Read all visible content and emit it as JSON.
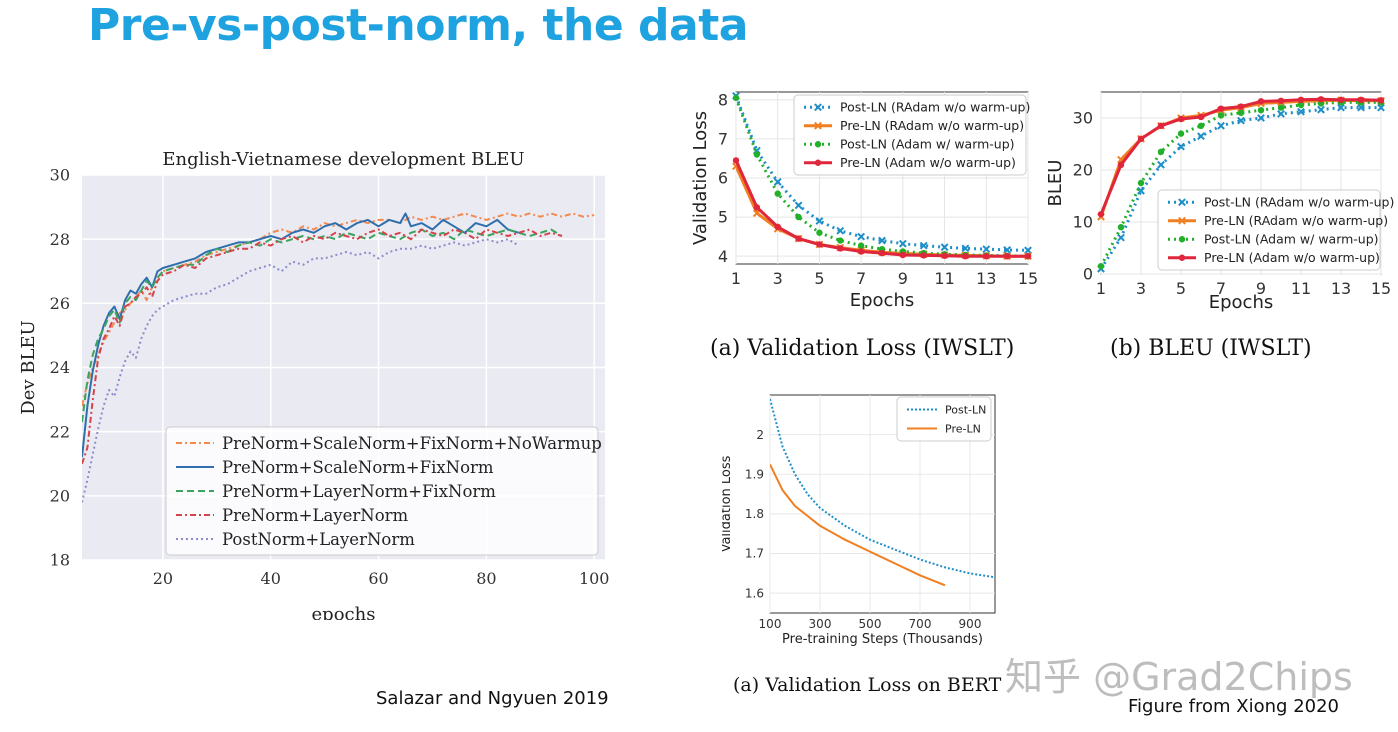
{
  "slide": {
    "title": "Pre-vs-post-norm, the data",
    "credit_left": "Salazar and Ngyuen 2019",
    "credit_right": "Figure from Xiong 2020",
    "watermark": "知乎 @Grad2Chips"
  },
  "colors": {
    "title": "#1fa3e0",
    "post_ln": "#1f8fc8",
    "pre_ln": "#f07f22",
    "post_adam": "#22b02a",
    "pre_adam": "#e0263c",
    "ax_bg": "#eaeaf2"
  },
  "chart_data": [
    {
      "id": "bleu_envi",
      "type": "line",
      "title": "English-Vietnamese development BLEU",
      "xlabel": "epochs",
      "ylabel": "Dev BLEU",
      "xlim": [
        5,
        102
      ],
      "ylim": [
        18,
        30
      ],
      "xticks": [
        20,
        40,
        60,
        80,
        100
      ],
      "yticks": [
        18,
        20,
        22,
        24,
        26,
        28,
        30
      ],
      "legend_position": "bottom-right",
      "series": [
        {
          "name": "PreNorm+ScaleNorm+FixNorm+NoWarmup",
          "color": "#f4894f",
          "dash": "6,3,2,3",
          "x": [
            5,
            6,
            7,
            8,
            9,
            10,
            11,
            12,
            13,
            14,
            15,
            16,
            17,
            18,
            19,
            20,
            22,
            24,
            26,
            28,
            30,
            32,
            34,
            36,
            38,
            40,
            42,
            44,
            46,
            48,
            50,
            52,
            54,
            56,
            58,
            60,
            62,
            64,
            66,
            68,
            70,
            72,
            74,
            76,
            78,
            80,
            82,
            84,
            86,
            88,
            90,
            92,
            94,
            96,
            98,
            100
          ],
          "y": [
            22.8,
            23.5,
            24.0,
            24.4,
            24.8,
            25.1,
            25.4,
            25.7,
            25.8,
            26.0,
            26.2,
            26.4,
            26.1,
            26.5,
            26.8,
            27.0,
            27.1,
            27.2,
            27.3,
            27.5,
            27.6,
            27.7,
            27.8,
            27.9,
            28.0,
            28.2,
            28.3,
            28.2,
            28.4,
            28.3,
            28.5,
            28.4,
            28.5,
            28.6,
            28.5,
            28.6,
            28.6,
            28.5,
            28.7,
            28.6,
            28.7,
            28.6,
            28.7,
            28.8,
            28.7,
            28.6,
            28.7,
            28.8,
            28.7,
            28.8,
            28.7,
            28.8,
            28.7,
            28.8,
            28.7,
            28.75
          ]
        },
        {
          "name": "PreNorm+ScaleNorm+FixNorm",
          "color": "#2f6fad",
          "dash": "",
          "x": [
            5,
            6,
            7,
            8,
            9,
            10,
            11,
            12,
            13,
            14,
            15,
            16,
            17,
            18,
            19,
            20,
            22,
            24,
            26,
            28,
            30,
            32,
            34,
            36,
            38,
            40,
            42,
            44,
            46,
            48,
            50,
            52,
            54,
            56,
            58,
            60,
            62,
            64,
            65,
            66,
            68,
            70,
            72,
            74,
            76,
            78,
            80,
            82,
            84,
            86
          ],
          "y": [
            21.2,
            22.8,
            23.9,
            24.7,
            25.3,
            25.7,
            25.9,
            25.5,
            26.1,
            26.4,
            26.3,
            26.6,
            26.8,
            26.5,
            27.0,
            27.1,
            27.2,
            27.3,
            27.4,
            27.6,
            27.7,
            27.8,
            27.9,
            27.9,
            28.0,
            28.1,
            28.0,
            28.2,
            28.3,
            28.2,
            28.4,
            28.5,
            28.3,
            28.5,
            28.6,
            28.4,
            28.6,
            28.5,
            28.8,
            28.4,
            28.5,
            28.3,
            28.6,
            28.4,
            28.2,
            28.5,
            28.4,
            28.6,
            28.3,
            28.2
          ]
        },
        {
          "name": "PreNorm+LayerNorm+FixNorm",
          "color": "#3aa35e",
          "dash": "7,4",
          "x": [
            5,
            6,
            7,
            8,
            9,
            10,
            11,
            12,
            13,
            14,
            15,
            16,
            17,
            18,
            19,
            20,
            22,
            24,
            26,
            28,
            30,
            32,
            34,
            36,
            38,
            40,
            42,
            44,
            46,
            48,
            50,
            52,
            54,
            56,
            58,
            60,
            62,
            64,
            66,
            68,
            70,
            72,
            74,
            76,
            78,
            80,
            82,
            84,
            86,
            88,
            90,
            92,
            94
          ],
          "y": [
            22.3,
            23.6,
            24.4,
            24.9,
            25.2,
            25.6,
            25.8,
            25.4,
            26.0,
            26.2,
            26.1,
            26.4,
            26.7,
            26.5,
            26.8,
            27.0,
            27.1,
            27.2,
            27.2,
            27.5,
            27.7,
            27.6,
            27.8,
            27.9,
            27.8,
            28.0,
            27.9,
            28.0,
            28.1,
            28.0,
            28.1,
            28.0,
            28.2,
            28.1,
            28.0,
            28.2,
            28.1,
            28.0,
            28.2,
            28.3,
            28.1,
            28.2,
            28.0,
            28.3,
            28.2,
            28.1,
            28.2,
            28.3,
            28.2,
            28.1,
            28.2,
            28.3,
            28.1
          ]
        },
        {
          "name": "PreNorm+LayerNorm",
          "color": "#d6434a",
          "dash": "6,3,2,3",
          "x": [
            5,
            6,
            7,
            8,
            9,
            10,
            11,
            12,
            13,
            14,
            15,
            16,
            17,
            18,
            19,
            20,
            22,
            24,
            26,
            28,
            30,
            32,
            34,
            36,
            38,
            40,
            42,
            44,
            46,
            48,
            50,
            52,
            54,
            56,
            58,
            60,
            62,
            64,
            66,
            68,
            70,
            72,
            74,
            76,
            78,
            80,
            82,
            84,
            86,
            88,
            90,
            92,
            94
          ],
          "y": [
            21.0,
            21.5,
            23.0,
            24.3,
            24.9,
            25.2,
            25.6,
            25.3,
            25.9,
            26.0,
            26.2,
            26.3,
            26.5,
            26.2,
            26.7,
            26.9,
            27.0,
            27.2,
            27.1,
            27.4,
            27.5,
            27.6,
            27.7,
            27.7,
            27.9,
            27.8,
            28.0,
            28.1,
            27.9,
            28.1,
            28.0,
            28.2,
            28.1,
            28.0,
            28.2,
            28.3,
            28.1,
            28.2,
            28.0,
            28.3,
            28.2,
            28.1,
            28.3,
            28.2,
            28.0,
            28.3,
            28.2,
            28.1,
            28.2,
            28.3,
            28.1,
            28.2,
            28.1
          ]
        },
        {
          "name": "PostNorm+LayerNorm",
          "color": "#8c8ccc",
          "dash": "2,3",
          "x": [
            5,
            6,
            7,
            8,
            9,
            10,
            11,
            12,
            13,
            14,
            15,
            16,
            17,
            18,
            19,
            20,
            22,
            24,
            26,
            28,
            30,
            32,
            34,
            36,
            38,
            40,
            42,
            44,
            46,
            48,
            50,
            52,
            54,
            56,
            58,
            60,
            62,
            64,
            66,
            68,
            70,
            72,
            74,
            76,
            78,
            80,
            82,
            84,
            86
          ],
          "y": [
            19.8,
            20.5,
            21.3,
            22.1,
            22.8,
            23.3,
            23.1,
            23.7,
            24.2,
            24.5,
            24.3,
            24.9,
            25.3,
            25.6,
            25.8,
            25.9,
            26.1,
            26.2,
            26.3,
            26.3,
            26.5,
            26.6,
            26.8,
            27.0,
            27.1,
            27.2,
            27.0,
            27.3,
            27.2,
            27.4,
            27.4,
            27.5,
            27.6,
            27.5,
            27.6,
            27.4,
            27.6,
            27.7,
            27.7,
            27.8,
            27.7,
            27.8,
            27.9,
            27.8,
            27.9,
            28.0,
            27.9,
            28.0,
            27.8
          ]
        }
      ]
    },
    {
      "id": "val_loss_iwslt",
      "type": "line",
      "title": "",
      "caption": "(a)  Validation Loss (IWSLT)",
      "xlabel": "Epochs",
      "ylabel": "Validation Loss",
      "xlim": [
        1,
        15
      ],
      "ylim": [
        3.8,
        8.2
      ],
      "xticks": [
        1,
        3,
        5,
        7,
        9,
        11,
        13,
        15
      ],
      "yticks": [
        4,
        5,
        6,
        7,
        8
      ],
      "legend_position": "top-right",
      "series": [
        {
          "name": "Post-LN (RAdam w/o warm-up)",
          "color": "#1f8fc8",
          "dash": "2,4",
          "marker": "x",
          "x": [
            1,
            2,
            3,
            4,
            5,
            6,
            7,
            8,
            9,
            10,
            11,
            12,
            13,
            14,
            15
          ],
          "y": [
            8.1,
            6.7,
            5.9,
            5.3,
            4.9,
            4.65,
            4.5,
            4.4,
            4.32,
            4.27,
            4.23,
            4.2,
            4.18,
            4.16,
            4.15
          ]
        },
        {
          "name": "Pre-LN (RAdam w/o warm-up)",
          "color": "#f07f22",
          "dash": "",
          "marker": "x",
          "x": [
            1,
            2,
            3,
            4,
            5,
            6,
            7,
            8,
            9,
            10,
            11,
            12,
            13,
            14,
            15
          ],
          "y": [
            6.3,
            5.1,
            4.7,
            4.45,
            4.3,
            4.22,
            4.15,
            4.1,
            4.07,
            4.05,
            4.03,
            4.02,
            4.01,
            4.0,
            4.0
          ]
        },
        {
          "name": "Post-LN (Adam w/ warm-up)",
          "color": "#22b02a",
          "dash": "2,4",
          "marker": "o",
          "x": [
            1,
            2,
            3,
            4,
            5,
            6,
            7,
            8,
            9,
            10,
            11,
            12,
            13,
            14,
            15
          ],
          "y": [
            8.05,
            6.6,
            5.6,
            5.0,
            4.6,
            4.4,
            4.27,
            4.18,
            4.12,
            4.08,
            4.05,
            4.03,
            4.02,
            4.01,
            4.0
          ]
        },
        {
          "name": "Pre-LN (Adam w/o warm-up)",
          "color": "#e0263c",
          "dash": "",
          "marker": "o",
          "x": [
            1,
            2,
            3,
            4,
            5,
            6,
            7,
            8,
            9,
            10,
            11,
            12,
            13,
            14,
            15
          ],
          "y": [
            6.45,
            5.25,
            4.75,
            4.45,
            4.3,
            4.2,
            4.12,
            4.08,
            4.03,
            4.02,
            4.01,
            4.0,
            4.0,
            4.0,
            4.0
          ]
        }
      ]
    },
    {
      "id": "bleu_iwslt",
      "type": "line",
      "title": "",
      "caption": "(b)  BLEU (IWSLT)",
      "xlabel": "Epochs",
      "ylabel": "BLEU",
      "xlim": [
        1,
        15
      ],
      "ylim": [
        0,
        35
      ],
      "xticks": [
        1,
        3,
        5,
        7,
        9,
        11,
        13,
        15
      ],
      "yticks": [
        0,
        10,
        20,
        30
      ],
      "legend_position": "bottom-right",
      "series": [
        {
          "name": "Post-LN (RAdam w/o warm-up)",
          "color": "#1f8fc8",
          "dash": "2,4",
          "marker": "x",
          "x": [
            1,
            2,
            3,
            4,
            5,
            6,
            7,
            8,
            9,
            10,
            11,
            12,
            13,
            14,
            15
          ],
          "y": [
            1,
            7,
            16,
            21,
            24.5,
            26.5,
            28.5,
            29.5,
            30,
            30.8,
            31.2,
            31.6,
            32,
            32,
            32
          ]
        },
        {
          "name": "Pre-LN (RAdam w/o warm-up)",
          "color": "#f07f22",
          "dash": "",
          "marker": "x",
          "x": [
            1,
            2,
            3,
            4,
            5,
            6,
            7,
            8,
            9,
            10,
            11,
            12,
            13,
            14,
            15
          ],
          "y": [
            11,
            22,
            26,
            28.5,
            30,
            30.5,
            31.5,
            32,
            32.8,
            33,
            33.2,
            33.3,
            33.4,
            33.3,
            33.3
          ]
        },
        {
          "name": "Post-LN (Adam w/ warm-up)",
          "color": "#22b02a",
          "dash": "2,4",
          "marker": "o",
          "x": [
            1,
            2,
            3,
            4,
            5,
            6,
            7,
            8,
            9,
            10,
            11,
            12,
            13,
            14,
            15
          ],
          "y": [
            1.5,
            9,
            17.5,
            23.5,
            27,
            28.5,
            30.5,
            31,
            31.5,
            32,
            32.5,
            32.8,
            33,
            33,
            33
          ]
        },
        {
          "name": "Pre-LN (Adam w/o warm-up)",
          "color": "#e0263c",
          "dash": "",
          "marker": "o",
          "x": [
            1,
            2,
            3,
            4,
            5,
            6,
            7,
            8,
            9,
            10,
            11,
            12,
            13,
            14,
            15
          ],
          "y": [
            11.5,
            21,
            26,
            28.5,
            29.8,
            30.2,
            31.8,
            32.2,
            33.2,
            33.3,
            33.5,
            33.6,
            33.5,
            33.5,
            33.4
          ]
        }
      ]
    },
    {
      "id": "val_loss_bert",
      "type": "line",
      "title": "",
      "caption": "(a)  Validation Loss on BERT",
      "xlabel": "Pre-training Steps (Thousands)",
      "ylabel": "Validation Loss",
      "xlim": [
        100,
        1000
      ],
      "ylim": [
        1.55,
        2.1
      ],
      "xticks": [
        100,
        300,
        500,
        700,
        900
      ],
      "yticks": [
        1.6,
        1.7,
        1.8,
        1.9,
        2.0
      ],
      "legend_position": "top-right",
      "series": [
        {
          "name": "Post-LN",
          "color": "#1f8fc8",
          "dash": "2,2",
          "marker": "",
          "x": [
            100,
            150,
            200,
            250,
            300,
            400,
            500,
            600,
            700,
            800,
            900,
            1000
          ],
          "y": [
            2.09,
            1.97,
            1.9,
            1.85,
            1.815,
            1.77,
            1.735,
            1.71,
            1.685,
            1.665,
            1.65,
            1.64
          ]
        },
        {
          "name": "Pre-LN",
          "color": "#f07f22",
          "dash": "",
          "marker": "",
          "x": [
            100,
            150,
            200,
            250,
            300,
            400,
            500,
            600,
            700,
            800
          ],
          "y": [
            1.925,
            1.86,
            1.82,
            1.795,
            1.77,
            1.735,
            1.705,
            1.675,
            1.645,
            1.62
          ]
        }
      ]
    }
  ]
}
